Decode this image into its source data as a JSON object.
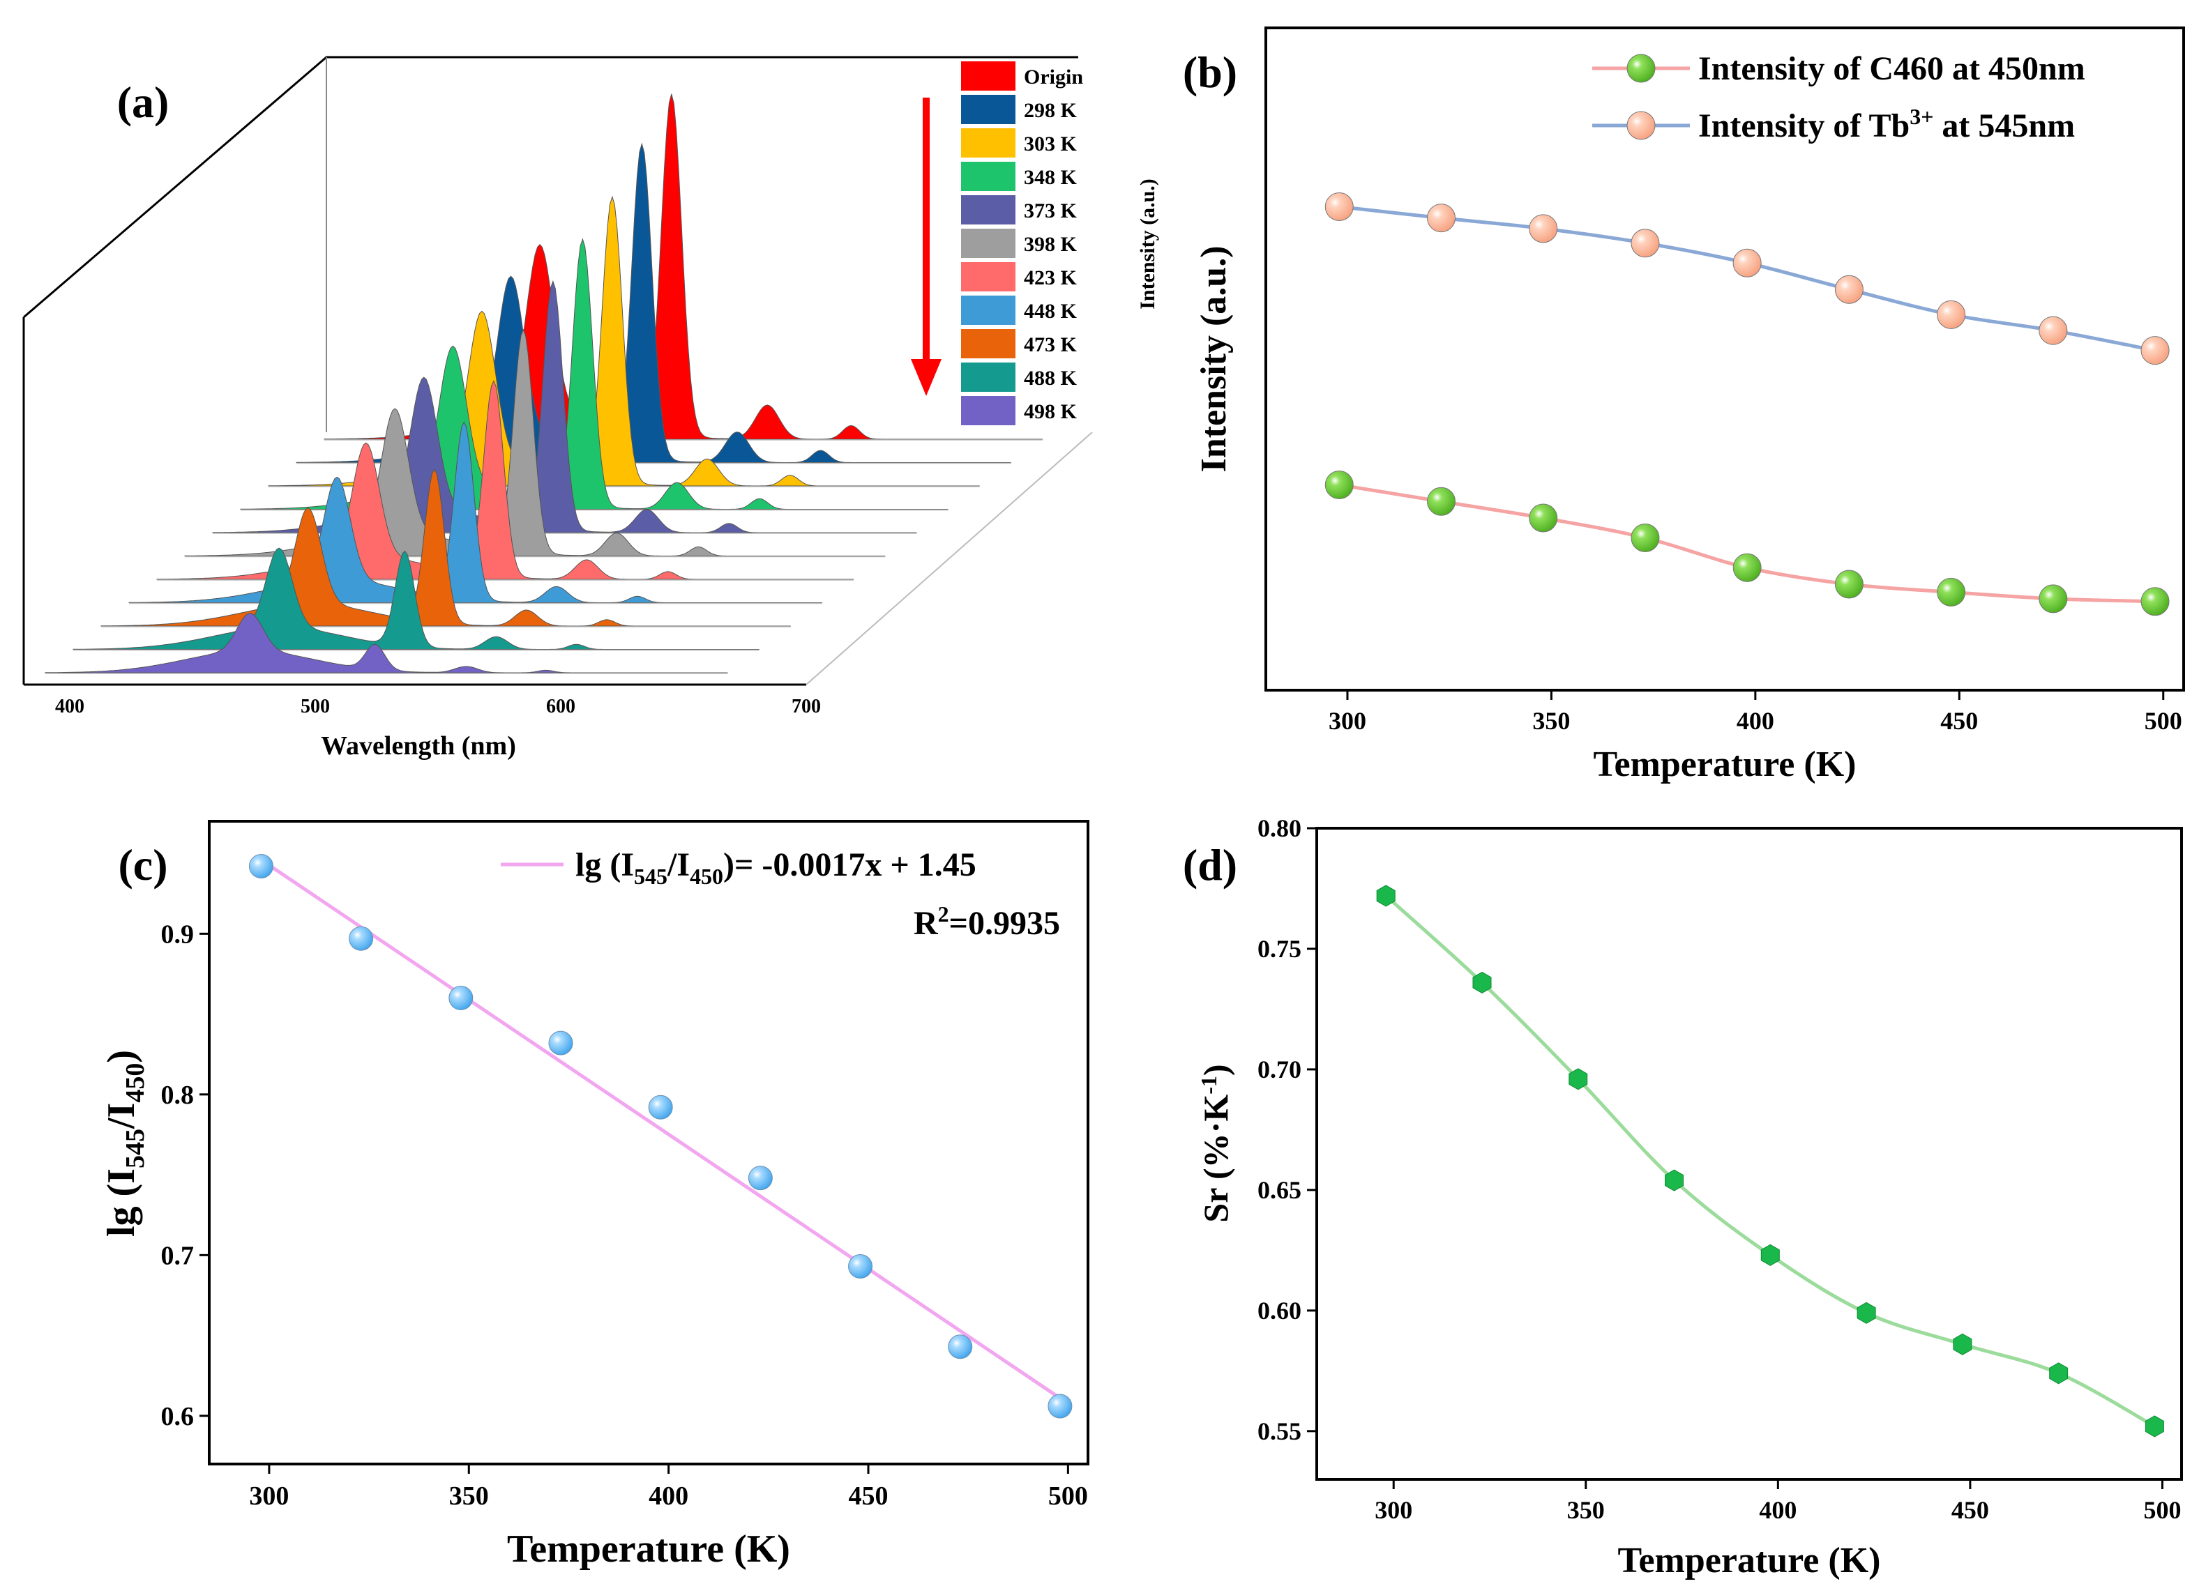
{
  "chart_data": [
    {
      "panel": "(a)",
      "type": "area",
      "subtype": "3d-waterfall-spectra",
      "xlabel": "Wavelength (nm)",
      "zlabel": "Intensity (a.u.)",
      "xlim": [
        400,
        700
      ],
      "xticks": [
        "400",
        "500",
        "600",
        "700"
      ],
      "legend_position": "top-right",
      "trend_arrow": "down",
      "peaks_nm": [
        490,
        545,
        585
      ],
      "series": [
        {
          "name": "Origin",
          "color": "#ff0000",
          "peak_545": 1.0,
          "peak_490": 0.5,
          "peak_585": 0.1
        },
        {
          "name": "298 K",
          "color": "#0a5797",
          "peak_545": 0.93,
          "peak_490": 0.48,
          "peak_585": 0.09
        },
        {
          "name": "303 K",
          "color": "#ffc000",
          "peak_545": 0.85,
          "peak_490": 0.45,
          "peak_585": 0.08
        },
        {
          "name": "348 K",
          "color": "#1ec46b",
          "peak_545": 0.8,
          "peak_490": 0.42,
          "peak_585": 0.08
        },
        {
          "name": "373 K",
          "color": "#5b5ea6",
          "peak_545": 0.75,
          "peak_490": 0.4,
          "peak_585": 0.07
        },
        {
          "name": "398 K",
          "color": "#9e9e9e",
          "peak_545": 0.68,
          "peak_490": 0.38,
          "peak_585": 0.07
        },
        {
          "name": "423 K",
          "color": "#ff6b6b",
          "peak_545": 0.6,
          "peak_490": 0.35,
          "peak_585": 0.06
        },
        {
          "name": "448 K",
          "color": "#3e9bd6",
          "peak_545": 0.55,
          "peak_490": 0.32,
          "peak_585": 0.05
        },
        {
          "name": "473 K",
          "color": "#e8630a",
          "peak_545": 0.48,
          "peak_490": 0.3,
          "peak_585": 0.05
        },
        {
          "name": "488 K",
          "color": "#149a8e",
          "peak_545": 0.3,
          "peak_490": 0.25,
          "peak_585": 0.04
        },
        {
          "name": "498 K",
          "color": "#7362c6",
          "peak_545": 0.08,
          "peak_490": 0.12,
          "peak_585": 0.02
        }
      ]
    },
    {
      "panel": "(b)",
      "type": "line",
      "xlabel": "Temperature (K)",
      "ylabel": "Intensity (a.u.)",
      "xlim": [
        280,
        505
      ],
      "ylim": [
        0,
        1
      ],
      "xticks": [
        300,
        350,
        400,
        450,
        500
      ],
      "yticks_visible": false,
      "legend_position": "top-right",
      "x": [
        298,
        323,
        348,
        373,
        398,
        423,
        448,
        473,
        498
      ],
      "series": [
        {
          "name_prefix": "Intensity of C460 at 450nm",
          "name_sup": "",
          "name_suffix": "",
          "line_color": "#f5a3a3",
          "marker_color": "#4cad1e",
          "values": [
            0.31,
            0.285,
            0.26,
            0.23,
            0.185,
            0.16,
            0.148,
            0.138,
            0.134
          ]
        },
        {
          "name_prefix": "Intensity of Tb",
          "name_sup": "3+",
          "name_suffix": " at 545nm",
          "line_color": "#8aa8d6",
          "marker_color": "#f6a07e",
          "values": [
            0.73,
            0.713,
            0.697,
            0.675,
            0.645,
            0.605,
            0.567,
            0.543,
            0.513
          ]
        }
      ]
    },
    {
      "panel": "(c)",
      "type": "scatter",
      "xlabel": "Temperature (K)",
      "ylabel_main": "lg (I",
      "ylabel_sub1": "545",
      "ylabel_mid": "/I",
      "ylabel_sub2": "450",
      "ylabel_end": ")",
      "xlim": [
        285,
        505
      ],
      "ylim": [
        0.57,
        0.97
      ],
      "xticks": [
        300,
        350,
        400,
        450,
        500
      ],
      "yticks": [
        0.6,
        0.7,
        0.8,
        0.9
      ],
      "x": [
        298,
        323,
        348,
        373,
        398,
        423,
        448,
        473,
        498
      ],
      "values": [
        0.942,
        0.897,
        0.86,
        0.832,
        0.792,
        0.748,
        0.693,
        0.643,
        0.606
      ],
      "marker_color": "#3fa4ec",
      "fit": {
        "color": "#f3a6f0",
        "slope": -0.0017,
        "intercept": 1.45,
        "x_range": [
          298,
          498
        ],
        "y_range": [
          0.946,
          0.611
        ],
        "label_main": "lg (I",
        "label_sub1": "545",
        "label_mid": "/I",
        "label_sub2": "450",
        "label_end": ")= -0.0017x + 1.45",
        "r2_prefix": "R",
        "r2_sup": "2",
        "r2_value": "=0.9935"
      }
    },
    {
      "panel": "(d)",
      "type": "line",
      "xlabel": "Temperature (K)",
      "ylabel_main": "Sr (%·K",
      "ylabel_sup": "-1",
      "ylabel_end": ")",
      "xlim": [
        280,
        505
      ],
      "ylim": [
        0.53,
        0.8
      ],
      "xticks": [
        300,
        350,
        400,
        450,
        500
      ],
      "yticks": [
        "0.55",
        "0.60",
        "0.65",
        "0.70",
        "0.75",
        "0.80"
      ],
      "x": [
        298,
        323,
        348,
        373,
        398,
        423,
        448,
        473,
        498
      ],
      "values": [
        0.772,
        0.736,
        0.696,
        0.654,
        0.623,
        0.599,
        0.586,
        0.574,
        0.552
      ],
      "line_color": "#9bdb9b",
      "marker_color": "#1ab84a"
    }
  ]
}
